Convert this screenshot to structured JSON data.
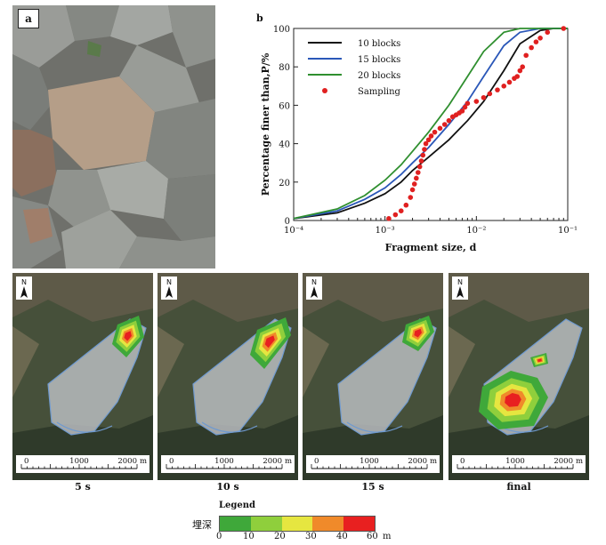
{
  "panel_a": {
    "label": "a"
  },
  "panel_b": {
    "label": "b"
  },
  "chart_data": {
    "type": "line",
    "xscale": "log",
    "xlim": [
      0.0001,
      0.1
    ],
    "ylim": [
      0,
      100
    ],
    "xlabel": "Fragment size, d",
    "ylabel": "Percentage finer than,P/%",
    "x_tick_labels": [
      "10⁻⁴",
      "10⁻³",
      "10⁻²",
      "10⁻¹"
    ],
    "y_tick_labels": [
      "0",
      "20",
      "40",
      "60",
      "80",
      "100"
    ],
    "legend_position": "top-left",
    "series": [
      {
        "name": "10 blocks",
        "color": "#111111",
        "kind": "line",
        "x": [
          0.0001,
          0.0003,
          0.0006,
          0.001,
          0.0015,
          0.002,
          0.003,
          0.005,
          0.008,
          0.012,
          0.02,
          0.03,
          0.05,
          0.07,
          0.1
        ],
        "y": [
          1,
          4,
          9,
          14,
          20,
          26,
          33,
          42,
          52,
          62,
          78,
          92,
          99,
          100,
          100
        ]
      },
      {
        "name": "15 blocks",
        "color": "#2a57b8",
        "kind": "line",
        "x": [
          0.0001,
          0.0003,
          0.0006,
          0.001,
          0.0015,
          0.002,
          0.003,
          0.005,
          0.008,
          0.012,
          0.02,
          0.03,
          0.05,
          0.07,
          0.1
        ],
        "y": [
          1,
          5,
          11,
          17,
          24,
          30,
          38,
          50,
          62,
          75,
          91,
          98,
          100,
          100,
          100
        ]
      },
      {
        "name": "20 blocks",
        "color": "#2f8f2f",
        "kind": "line",
        "x": [
          0.0001,
          0.0003,
          0.0006,
          0.001,
          0.0015,
          0.002,
          0.003,
          0.005,
          0.008,
          0.012,
          0.02,
          0.03,
          0.05,
          0.07,
          0.1
        ],
        "y": [
          1,
          6,
          13,
          21,
          29,
          36,
          46,
          60,
          75,
          88,
          98,
          100,
          100,
          100,
          100
        ]
      },
      {
        "name": "Sampling",
        "color": "#e02020",
        "kind": "scatter",
        "x": [
          0.0011,
          0.0013,
          0.0015,
          0.0017,
          0.0019,
          0.002,
          0.0021,
          0.0022,
          0.0023,
          0.0024,
          0.0025,
          0.0026,
          0.0027,
          0.0028,
          0.003,
          0.0032,
          0.0035,
          0.004,
          0.0045,
          0.005,
          0.0055,
          0.006,
          0.0065,
          0.007,
          0.0075,
          0.008,
          0.01,
          0.012,
          0.014,
          0.017,
          0.02,
          0.023,
          0.026,
          0.028,
          0.03,
          0.032,
          0.035,
          0.04,
          0.045,
          0.05,
          0.06,
          0.09
        ],
        "y": [
          1,
          3,
          5,
          8,
          12,
          16,
          19,
          22,
          25,
          28,
          31,
          34,
          37,
          40,
          42,
          44,
          46,
          48,
          50,
          52,
          54,
          55,
          56,
          57,
          59,
          61,
          62,
          64,
          66,
          68,
          70,
          72,
          74,
          75,
          78,
          80,
          86,
          90,
          93,
          95,
          98,
          100
        ]
      }
    ]
  },
  "maps": [
    {
      "caption": "5 s"
    },
    {
      "caption": "10 s"
    },
    {
      "caption": "15 s"
    },
    {
      "caption": "final"
    }
  ],
  "map_common": {
    "north": "N",
    "scale_ticks": [
      "0",
      "1000",
      "2000"
    ],
    "scale_unit": "m"
  },
  "legend": {
    "title": "Legend",
    "label": "埋深",
    "ticks": [
      "0",
      "10",
      "20",
      "30",
      "40",
      "60"
    ],
    "unit": "m",
    "colors": [
      "#3fa83a",
      "#8fcf3c",
      "#e6e640",
      "#f08a2a",
      "#e82020"
    ]
  }
}
